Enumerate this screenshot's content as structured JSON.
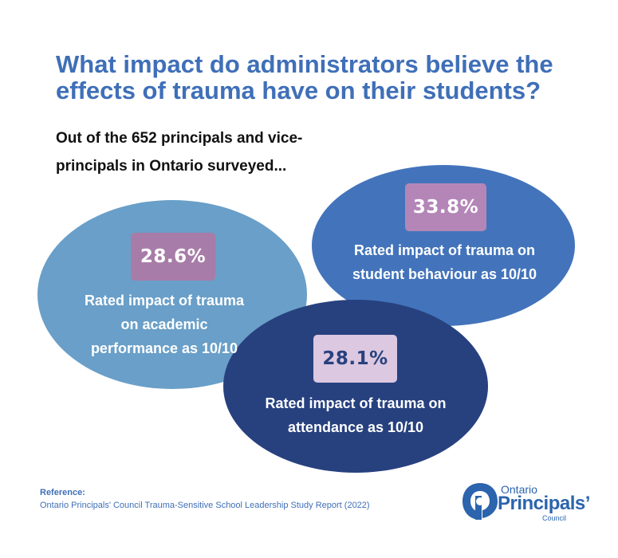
{
  "title": "What impact do administrators believe the effects of trauma have on their students?",
  "subtitle": "Out of the 652 principals and vice-principals in Ontario surveyed...",
  "stats": {
    "behaviour": {
      "value": "33.8%",
      "caption": "Rated impact of trauma on student behaviour as 10/10"
    },
    "academic": {
      "value": "28.6%",
      "caption": "Rated impact of trauma on academic performance as 10/10"
    },
    "attendance": {
      "value": "28.1%",
      "caption": "Rated impact of trauma on attendance as 10/10"
    }
  },
  "reference": {
    "label": "Reference:",
    "text": "Ontario Principals' Council Trauma-Sensitive School Leadership Study Report (2022)"
  },
  "logo": {
    "top": "Ontario",
    "main": "Principals’",
    "bottom": "Council"
  },
  "colors": {
    "title": "#3f6fb8",
    "behaviour_ellipse": "#4374bb",
    "academic_ellipse": "#699fc8",
    "attendance_ellipse": "#27417f",
    "badge_purple": "#b486b8",
    "badge_light": "#dcc8e0"
  }
}
